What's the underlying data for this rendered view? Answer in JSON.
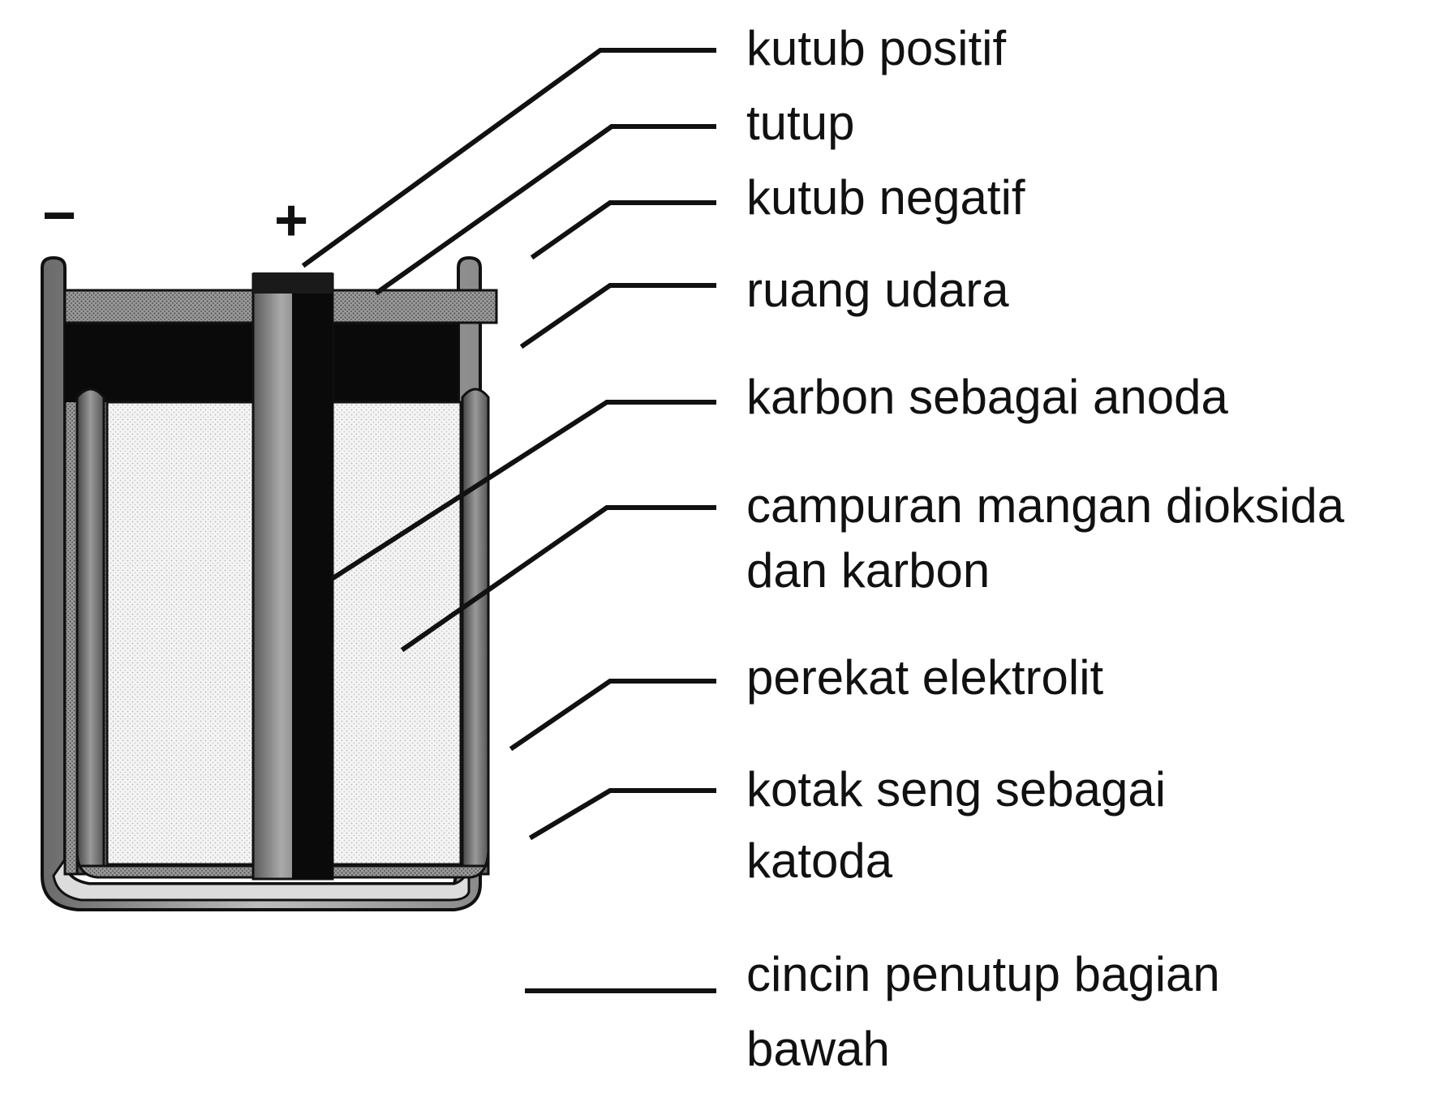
{
  "terminals": {
    "negative_sign": "−",
    "positive_sign": "+"
  },
  "labels": {
    "kutub_positif": "kutub positif",
    "tutup": "tutup",
    "kutub_negatif": "kutub negatif",
    "ruang_udara": "ruang udara",
    "karbon_anoda": "karbon sebagai anoda",
    "campuran_line1": "campuran mangan dioksida",
    "campuran_line2": "dan karbon",
    "perekat_elektrolit": "perekat elektrolit",
    "kotak_seng_line1": "kotak seng sebagai",
    "kotak_seng_line2": "katoda",
    "cincin_line1": "cincin penutup bagian",
    "cincin_line2": "bawah"
  }
}
